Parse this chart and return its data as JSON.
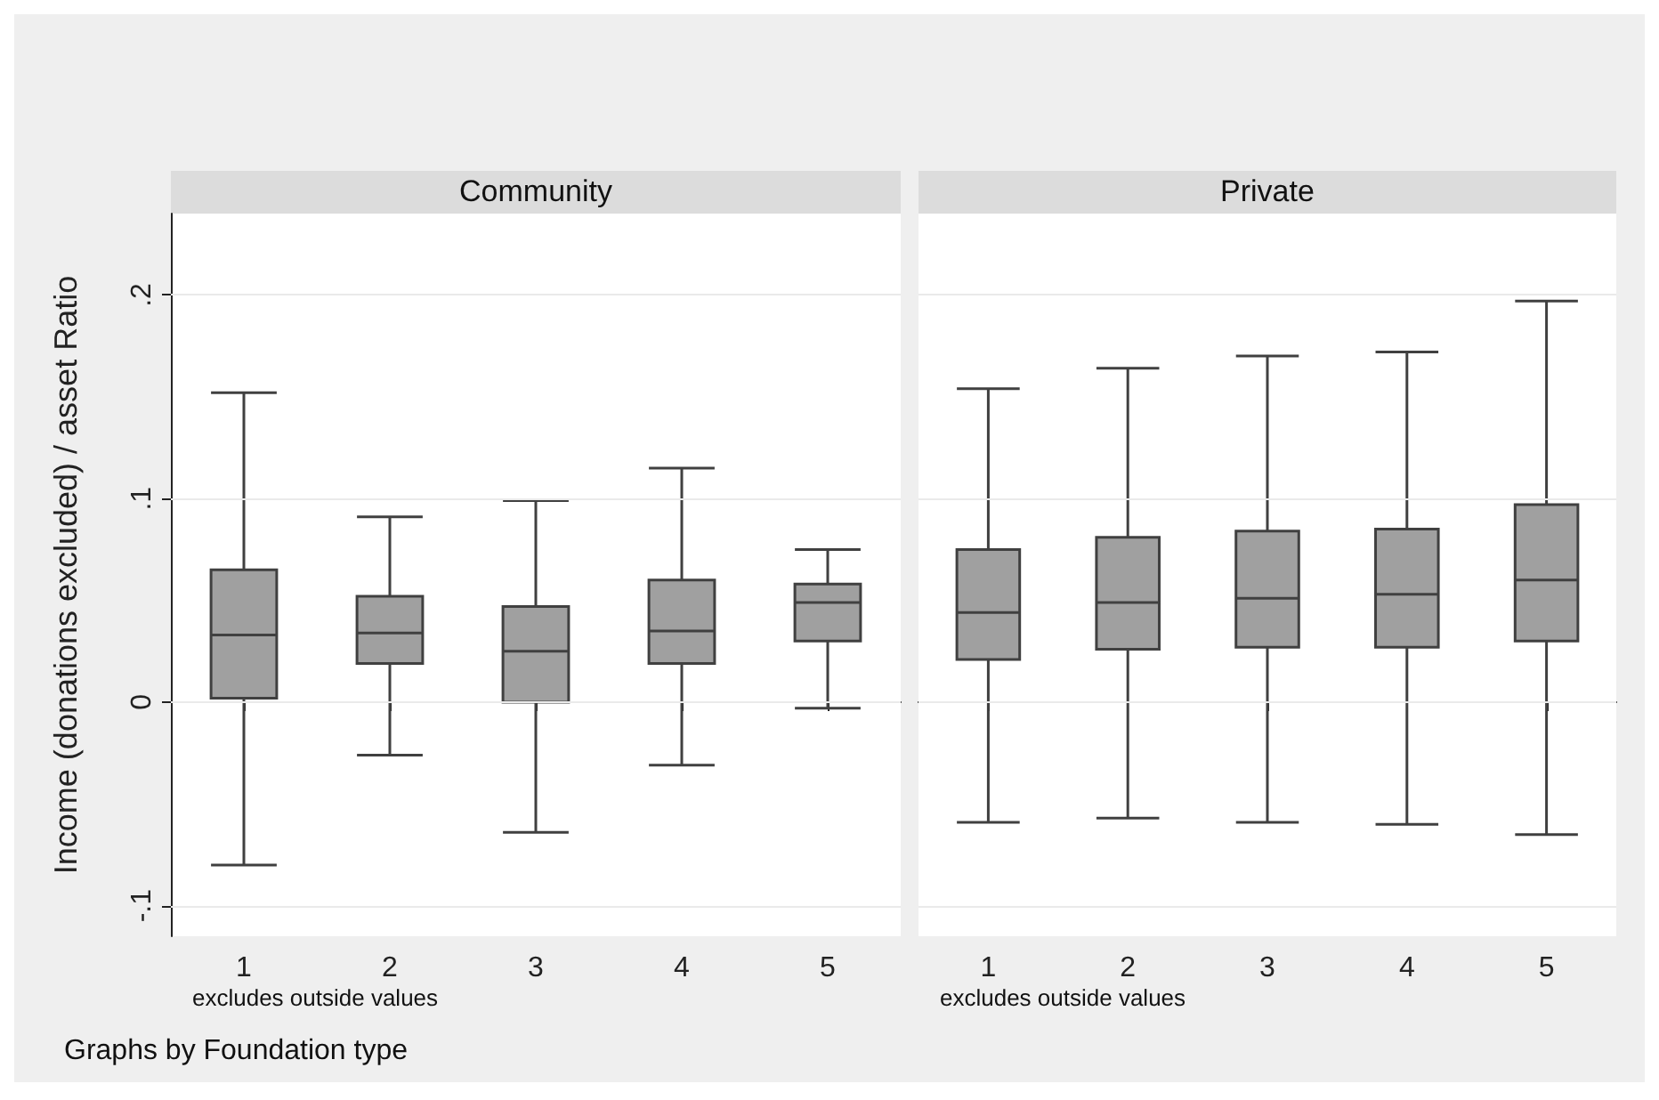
{
  "chart_data": [
    {
      "type": "box",
      "title": "Community",
      "ylabel": "Income (donations excluded) / asset Ratio",
      "categories": [
        "1",
        "2",
        "3",
        "4",
        "5"
      ],
      "color": "#a0a0a0",
      "boxes": [
        {
          "low": -0.08,
          "q1": 0.002,
          "median": 0.033,
          "q3": 0.065,
          "high": 0.152
        },
        {
          "low": -0.026,
          "q1": 0.019,
          "median": 0.034,
          "q3": 0.052,
          "high": 0.091
        },
        {
          "low": -0.064,
          "q1": 0,
          "median": 0.025,
          "q3": 0.047,
          "high": 0.099
        },
        {
          "low": -0.031,
          "q1": 0.019,
          "median": 0.035,
          "q3": 0.06,
          "high": 0.115
        },
        {
          "low": -0.003,
          "q1": 0.03,
          "median": 0.049,
          "q3": 0.058,
          "high": 0.075
        }
      ],
      "ylim": [
        -0.115,
        0.24
      ],
      "yticks": [
        {
          "value": -0.1,
          "label": "-.1"
        },
        0,
        {
          "value": 0.1,
          "label": ".1"
        },
        {
          "value": 0.2,
          "label": ".2"
        }
      ],
      "grid": "y",
      "annotations": [
        "excludes outside values",
        "Graphs by Foundation type"
      ]
    },
    {
      "type": "box",
      "title": "Private",
      "categories": [
        "1",
        "2",
        "3",
        "4",
        "5"
      ],
      "color": "#a0a0a0",
      "boxes": [
        {
          "low": -0.059,
          "q1": 0.021,
          "median": 0.044,
          "q3": 0.075,
          "high": 0.154
        },
        {
          "low": -0.057,
          "q1": 0.026,
          "median": 0.049,
          "q3": 0.081,
          "high": 0.164
        },
        {
          "low": -0.059,
          "q1": 0.027,
          "median": 0.051,
          "q3": 0.084,
          "high": 0.17
        },
        {
          "low": -0.06,
          "q1": 0.027,
          "median": 0.053,
          "q3": 0.085,
          "high": 0.172
        },
        {
          "low": -0.065,
          "q1": 0.03,
          "median": 0.06,
          "q3": 0.097,
          "high": 0.197
        }
      ],
      "ylim": [
        -0.115,
        0.24
      ],
      "yticks": [
        -0.1,
        0,
        0.1,
        0.2
      ],
      "grid": "y",
      "tick_labels": "x",
      "annotations": [
        "excludes outside values"
      ]
    }
  ]
}
